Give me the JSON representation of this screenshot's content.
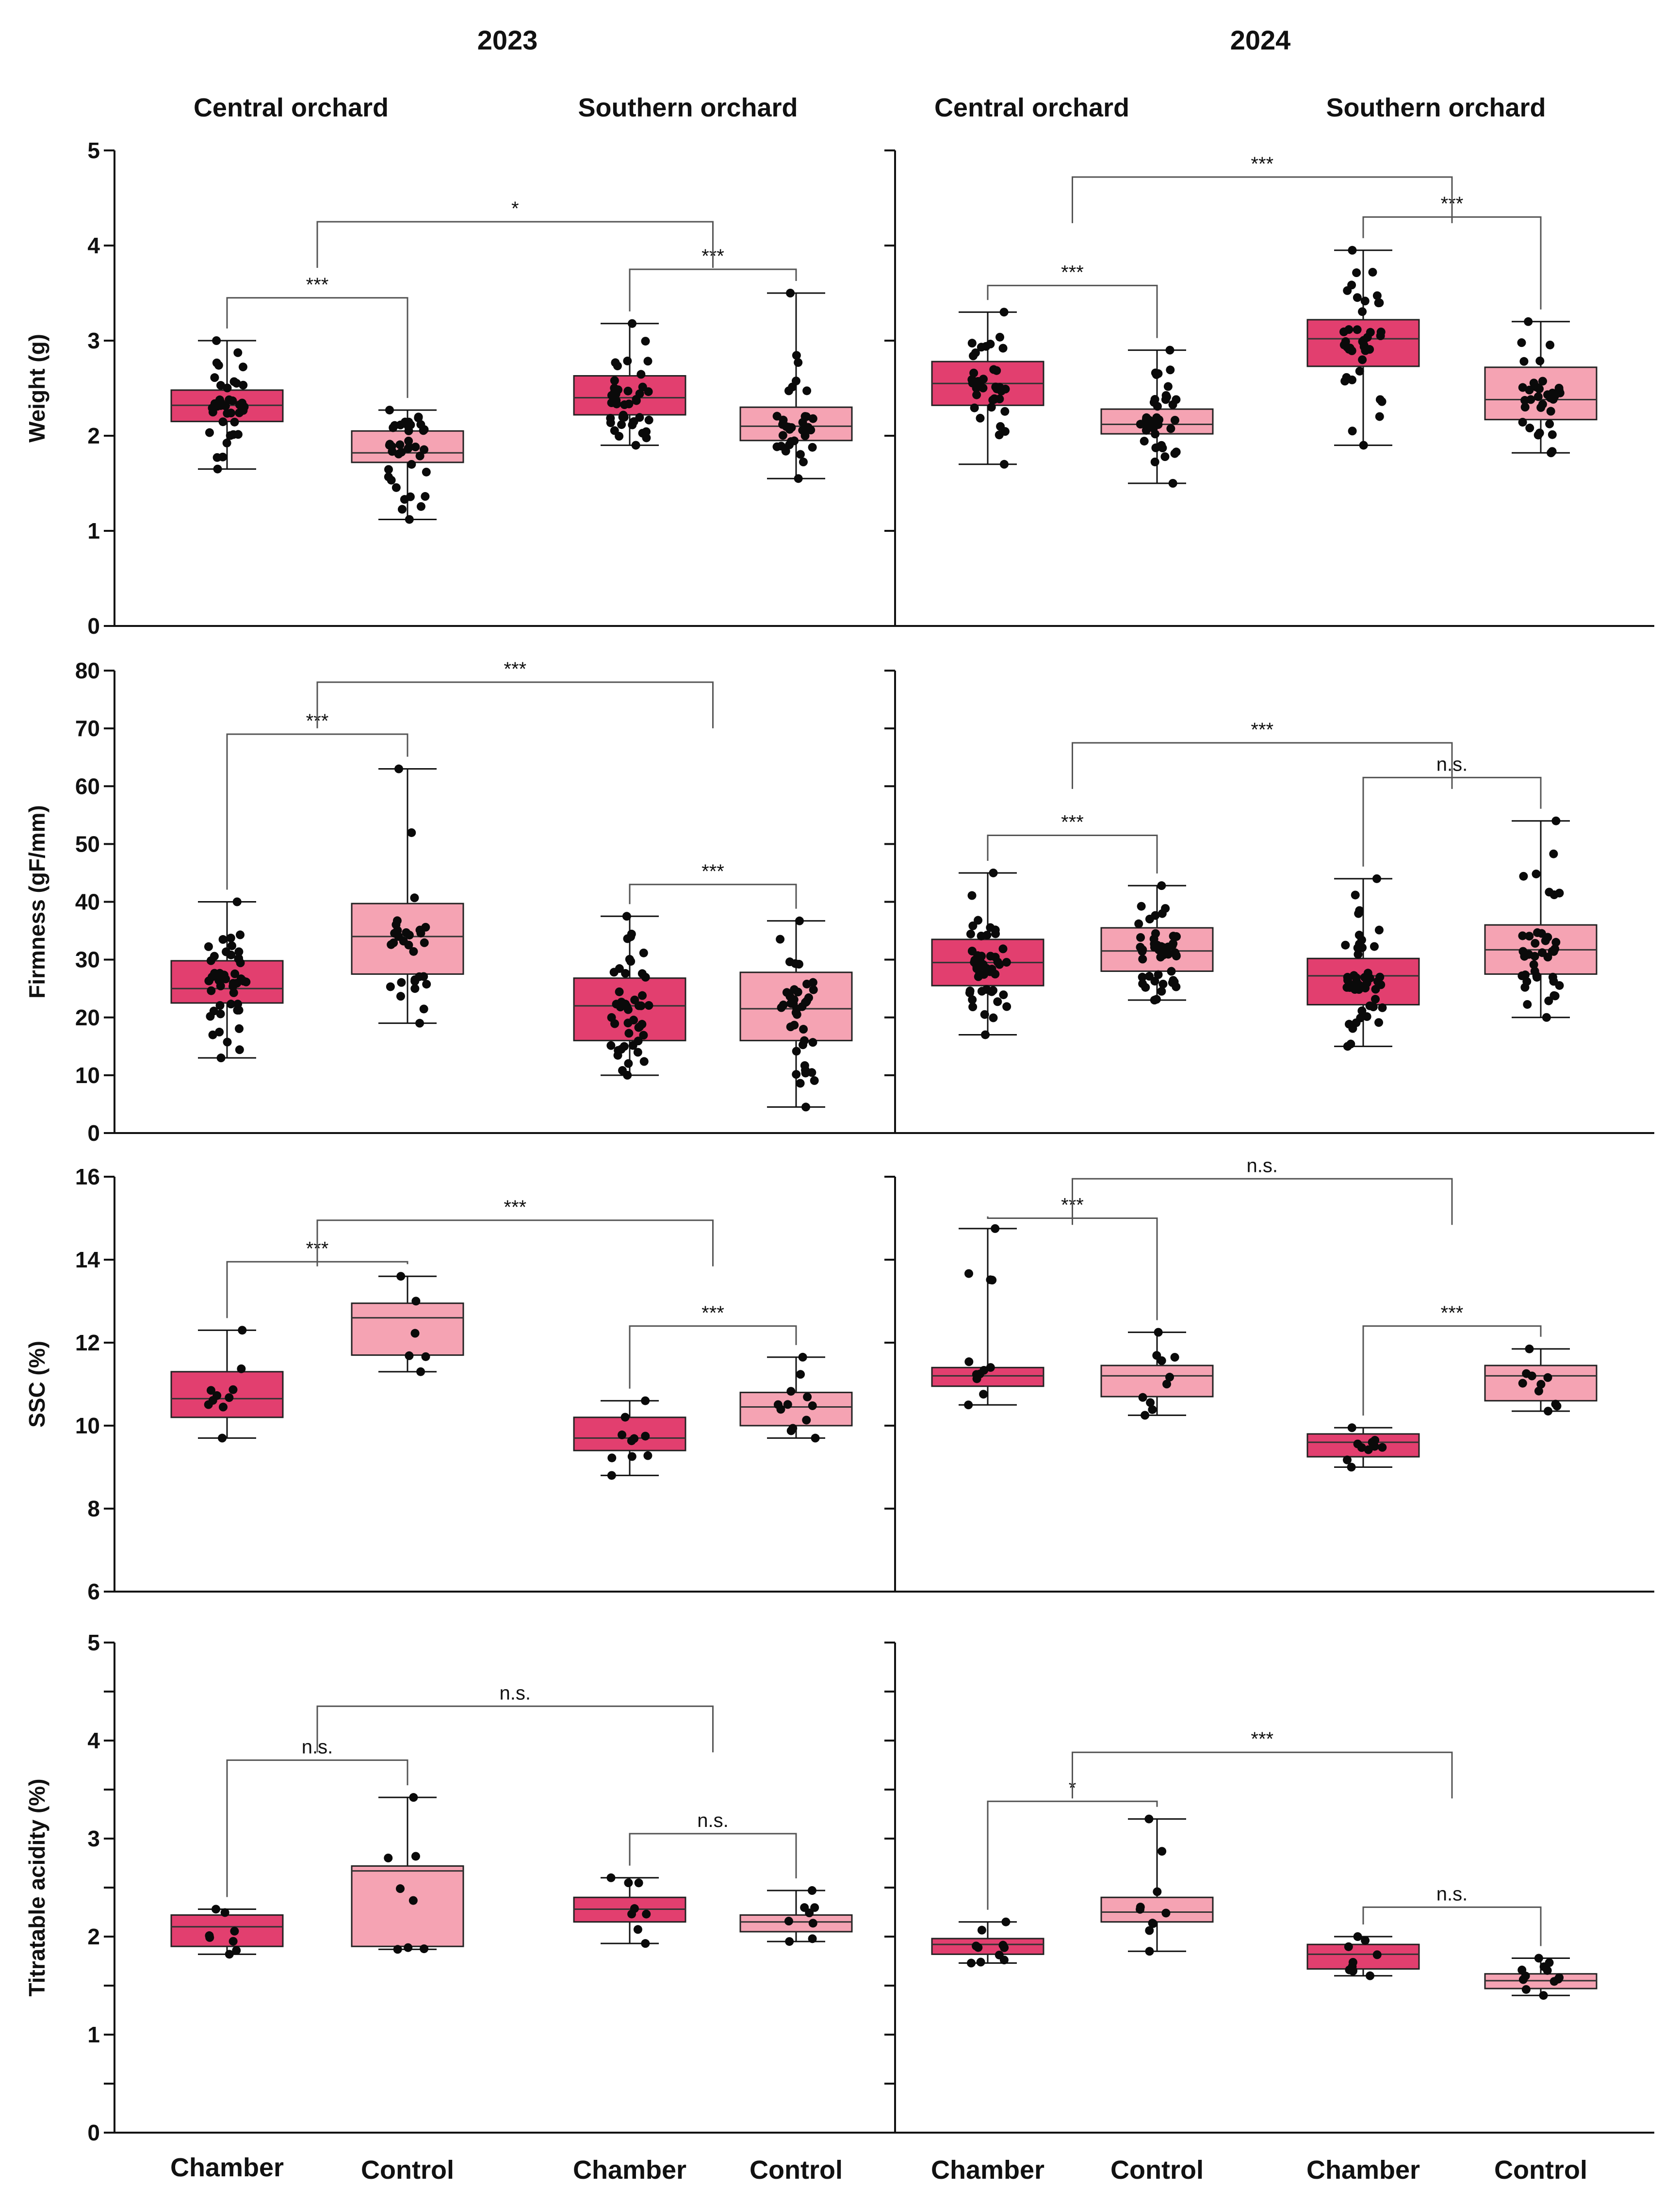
{
  "header": {
    "year_2023": "2023",
    "year_2024": "2024",
    "orchards": [
      "Central orchard",
      "Southern orchard",
      "Central orchard",
      "Southern orchard"
    ]
  },
  "group_labels": [
    "Chamber",
    "Control",
    "Chamber",
    "Control",
    "Chamber",
    "Control",
    "Chamber",
    "Control"
  ],
  "colors": {
    "chamber": "#e23f6f",
    "control": "#f5a3b3"
  },
  "chart_data": [
    {
      "type": "box",
      "ylabel": "Weight (g)",
      "ylim": [
        0,
        5
      ],
      "yticks": [
        "0",
        "1",
        "2",
        "3",
        "4",
        "5"
      ],
      "panels": [
        {
          "year": "2023",
          "groups": [
            {
              "orchard": "Central orchard",
              "treatment": "Chamber",
              "min": 1.65,
              "q1": 2.15,
              "median": 2.32,
              "q3": 2.48,
              "max": 3.0,
              "n": 40
            },
            {
              "orchard": "Central orchard",
              "treatment": "Control",
              "min": 1.12,
              "q1": 1.72,
              "median": 1.82,
              "q3": 2.05,
              "max": 2.27,
              "n": 40
            },
            {
              "orchard": "Southern orchard",
              "treatment": "Chamber",
              "min": 1.9,
              "q1": 2.22,
              "median": 2.4,
              "q3": 2.63,
              "max": 3.18,
              "n": 40
            },
            {
              "orchard": "Southern orchard",
              "treatment": "Control",
              "min": 1.55,
              "q1": 1.95,
              "median": 2.1,
              "q3": 2.3,
              "max": 3.5,
              "n": 35
            }
          ],
          "comparisons": [
            {
              "label": "***",
              "from": 0,
              "to": 1,
              "y": 3.45
            },
            {
              "label": "***",
              "from": 2,
              "to": 3,
              "y": 3.75
            },
            {
              "label": "*",
              "from": 0.5,
              "to": 2.5,
              "y": 4.25
            }
          ]
        },
        {
          "year": "2024",
          "groups": [
            {
              "orchard": "Central orchard",
              "treatment": "Chamber",
              "min": 1.7,
              "q1": 2.32,
              "median": 2.55,
              "q3": 2.78,
              "max": 3.3,
              "n": 40
            },
            {
              "orchard": "Central orchard",
              "treatment": "Control",
              "min": 1.5,
              "q1": 2.02,
              "median": 2.12,
              "q3": 2.28,
              "max": 2.9,
              "n": 40
            },
            {
              "orchard": "Southern orchard",
              "treatment": "Chamber",
              "min": 1.9,
              "q1": 2.73,
              "median": 3.02,
              "q3": 3.22,
              "max": 3.95,
              "n": 40
            },
            {
              "orchard": "Southern orchard",
              "treatment": "Control",
              "min": 1.82,
              "q1": 2.17,
              "median": 2.38,
              "q3": 2.72,
              "max": 3.2,
              "n": 35
            }
          ],
          "comparisons": [
            {
              "label": "***",
              "from": 0,
              "to": 1,
              "y": 3.58
            },
            {
              "label": "***",
              "from": 2,
              "to": 3,
              "y": 4.3
            },
            {
              "label": "***",
              "from": 0.5,
              "to": 2.5,
              "y": 4.72
            }
          ]
        }
      ]
    },
    {
      "type": "box",
      "ylabel": "Firmness (gF/mm)",
      "ylim": [
        0,
        80
      ],
      "yticks": [
        "0",
        "10",
        "20",
        "30",
        "40",
        "50",
        "60",
        "70",
        "80"
      ],
      "panels": [
        {
          "year": "2023",
          "groups": [
            {
              "orchard": "Central orchard",
              "treatment": "Chamber",
              "min": 13,
              "q1": 22.5,
              "median": 25,
              "q3": 29.8,
              "max": 40,
              "n": 50
            },
            {
              "orchard": "Central orchard",
              "treatment": "Control",
              "min": 19,
              "q1": 27.5,
              "median": 34,
              "q3": 39.7,
              "max": 63,
              "n": 30
            },
            {
              "orchard": "Southern orchard",
              "treatment": "Chamber",
              "min": 10,
              "q1": 16,
              "median": 22,
              "q3": 26.8,
              "max": 37.5,
              "n": 45
            },
            {
              "orchard": "Southern orchard",
              "treatment": "Control",
              "min": 4.5,
              "q1": 16,
              "median": 21.5,
              "q3": 27.8,
              "max": 36.7,
              "n": 40
            }
          ],
          "comparisons": [
            {
              "label": "***",
              "from": 0,
              "to": 1,
              "y": 69
            },
            {
              "label": "***",
              "from": 2,
              "to": 3,
              "y": 43
            },
            {
              "label": "***",
              "from": 0.5,
              "to": 2.5,
              "y": 78
            }
          ]
        },
        {
          "year": "2024",
          "groups": [
            {
              "orchard": "Central orchard",
              "treatment": "Chamber",
              "min": 17,
              "q1": 25.5,
              "median": 29.5,
              "q3": 33.5,
              "max": 45,
              "n": 50
            },
            {
              "orchard": "Central orchard",
              "treatment": "Control",
              "min": 23,
              "q1": 28,
              "median": 31.5,
              "q3": 35.5,
              "max": 42.8,
              "n": 50
            },
            {
              "orchard": "Southern orchard",
              "treatment": "Chamber",
              "min": 15,
              "q1": 22.2,
              "median": 27.2,
              "q3": 30.2,
              "max": 44,
              "n": 50
            },
            {
              "orchard": "Southern orchard",
              "treatment": "Control",
              "min": 20,
              "q1": 27.5,
              "median": 31.7,
              "q3": 36,
              "max": 54,
              "n": 40
            }
          ],
          "comparisons": [
            {
              "label": "***",
              "from": 0,
              "to": 1,
              "y": 51.5
            },
            {
              "label": "n.s.",
              "from": 2,
              "to": 3,
              "y": 61.5
            },
            {
              "label": "***",
              "from": 0.5,
              "to": 2.5,
              "y": 67.5
            }
          ]
        }
      ]
    },
    {
      "type": "box",
      "ylabel": "SSC (%)",
      "ylim": [
        6,
        16
      ],
      "yticks": [
        "6",
        "8",
        "10",
        "12",
        "14",
        "16"
      ],
      "panels": [
        {
          "year": "2023",
          "groups": [
            {
              "orchard": "Central orchard",
              "treatment": "Chamber",
              "min": 9.7,
              "q1": 10.2,
              "median": 10.65,
              "q3": 11.3,
              "max": 12.3,
              "n": 10
            },
            {
              "orchard": "Central orchard",
              "treatment": "Control",
              "min": 11.3,
              "q1": 11.7,
              "median": 12.6,
              "q3": 12.95,
              "max": 13.6,
              "n": 6
            },
            {
              "orchard": "Southern orchard",
              "treatment": "Chamber",
              "min": 8.8,
              "q1": 9.4,
              "median": 9.7,
              "q3": 10.2,
              "max": 10.6,
              "n": 10
            },
            {
              "orchard": "Southern orchard",
              "treatment": "Control",
              "min": 9.7,
              "q1": 10.0,
              "median": 10.45,
              "q3": 10.8,
              "max": 11.65,
              "n": 12
            }
          ],
          "comparisons": [
            {
              "label": "***",
              "from": 0,
              "to": 1,
              "y": 13.95
            },
            {
              "label": "***",
              "from": 2,
              "to": 3,
              "y": 12.4
            },
            {
              "label": "***",
              "from": 0.5,
              "to": 2.5,
              "y": 14.95
            }
          ]
        },
        {
          "year": "2024",
          "groups": [
            {
              "orchard": "Central orchard",
              "treatment": "Chamber",
              "min": 10.5,
              "q1": 10.95,
              "median": 11.2,
              "q3": 11.4,
              "max": 14.75,
              "n": 12
            },
            {
              "orchard": "Central orchard",
              "treatment": "Control",
              "min": 10.25,
              "q1": 10.7,
              "median": 11.2,
              "q3": 11.45,
              "max": 12.25,
              "n": 10
            },
            {
              "orchard": "Southern orchard",
              "treatment": "Chamber",
              "min": 9.0,
              "q1": 9.25,
              "median": 9.6,
              "q3": 9.8,
              "max": 9.95,
              "n": 10
            },
            {
              "orchard": "Southern orchard",
              "treatment": "Control",
              "min": 10.35,
              "q1": 10.6,
              "median": 11.2,
              "q3": 11.45,
              "max": 11.85,
              "n": 10
            }
          ],
          "comparisons": [
            {
              "label": "***",
              "from": 0,
              "to": 1,
              "y": 15.0
            },
            {
              "label": "***",
              "from": 2,
              "to": 3,
              "y": 12.4
            },
            {
              "label": "n.s.",
              "from": 0.5,
              "to": 2.5,
              "y": 15.95
            }
          ]
        }
      ]
    },
    {
      "type": "box",
      "ylabel": "Titratable acidity (%)",
      "ylim": [
        0,
        5
      ],
      "yticks": [
        "0",
        "1",
        "2",
        "3",
        "4",
        "5"
      ],
      "panels": [
        {
          "year": "2023",
          "groups": [
            {
              "orchard": "Central orchard",
              "treatment": "Chamber",
              "min": 1.82,
              "q1": 1.9,
              "median": 2.1,
              "q3": 2.22,
              "max": 2.28,
              "n": 8
            },
            {
              "orchard": "Central orchard",
              "treatment": "Control",
              "min": 1.87,
              "q1": 1.9,
              "median": 2.67,
              "q3": 2.72,
              "max": 3.42,
              "n": 8
            },
            {
              "orchard": "Southern orchard",
              "treatment": "Chamber",
              "min": 1.93,
              "q1": 2.15,
              "median": 2.28,
              "q3": 2.4,
              "max": 2.6,
              "n": 8
            },
            {
              "orchard": "Southern orchard",
              "treatment": "Control",
              "min": 1.95,
              "q1": 2.05,
              "median": 2.15,
              "q3": 2.22,
              "max": 2.47,
              "n": 8
            }
          ],
          "comparisons": [
            {
              "label": "n.s.",
              "from": 0,
              "to": 1,
              "y": 3.8
            },
            {
              "label": "n.s.",
              "from": 2,
              "to": 3,
              "y": 3.05
            },
            {
              "label": "n.s.",
              "from": 0.5,
              "to": 2.5,
              "y": 4.35
            }
          ]
        },
        {
          "year": "2024",
          "groups": [
            {
              "orchard": "Central orchard",
              "treatment": "Chamber",
              "min": 1.73,
              "q1": 1.82,
              "median": 1.92,
              "q3": 1.98,
              "max": 2.15,
              "n": 10
            },
            {
              "orchard": "Central orchard",
              "treatment": "Control",
              "min": 1.85,
              "q1": 2.15,
              "median": 2.25,
              "q3": 2.4,
              "max": 3.2,
              "n": 10
            },
            {
              "orchard": "Southern orchard",
              "treatment": "Chamber",
              "min": 1.6,
              "q1": 1.67,
              "median": 1.82,
              "q3": 1.92,
              "max": 2.0,
              "n": 10
            },
            {
              "orchard": "Southern orchard",
              "treatment": "Control",
              "min": 1.4,
              "q1": 1.47,
              "median": 1.55,
              "q3": 1.62,
              "max": 1.78,
              "n": 12
            }
          ],
          "comparisons": [
            {
              "label": "*",
              "from": 0,
              "to": 1,
              "y": 3.38
            },
            {
              "label": "n.s.",
              "from": 2,
              "to": 3,
              "y": 2.3
            },
            {
              "label": "***",
              "from": 0.5,
              "to": 2.5,
              "y": 3.88
            }
          ]
        }
      ]
    }
  ]
}
